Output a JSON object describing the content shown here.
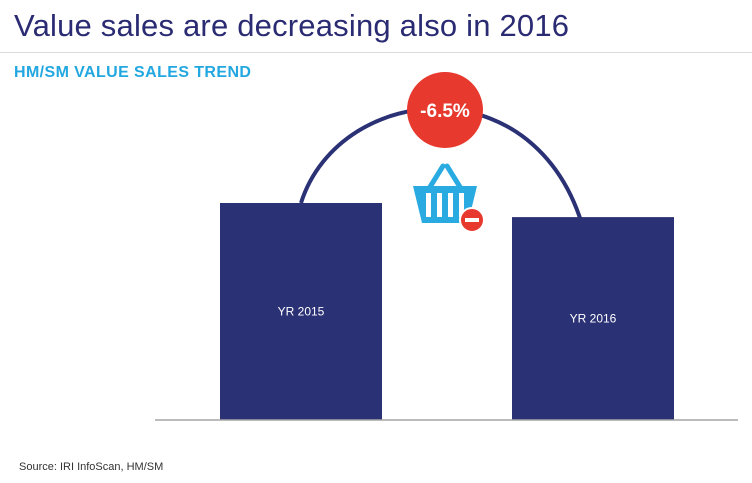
{
  "title": "Value sales are decreasing also in 2016",
  "subtitle": "HM/SM VALUE SALES TREND",
  "source": "Source: IRI InfoScan, HM/SM",
  "change_badge": "-6.5%",
  "colors": {
    "title": "#2a2b72",
    "subtitle": "#22a7e0",
    "bar": "#2b3175",
    "arrow": "#2b3175",
    "badge": "#e8392f",
    "basket_icon": "#29abe2"
  },
  "icons": [
    "shopping-basket-icon",
    "minus-circle-icon",
    "arrow-down-icon"
  ],
  "chart_data": {
    "type": "bar",
    "categories": [
      "YR 2015",
      "YR 2016"
    ],
    "values": [
      100,
      93.5
    ],
    "annotation": "-6.5%",
    "axis_visible": false,
    "bar_labels_inside": true
  }
}
